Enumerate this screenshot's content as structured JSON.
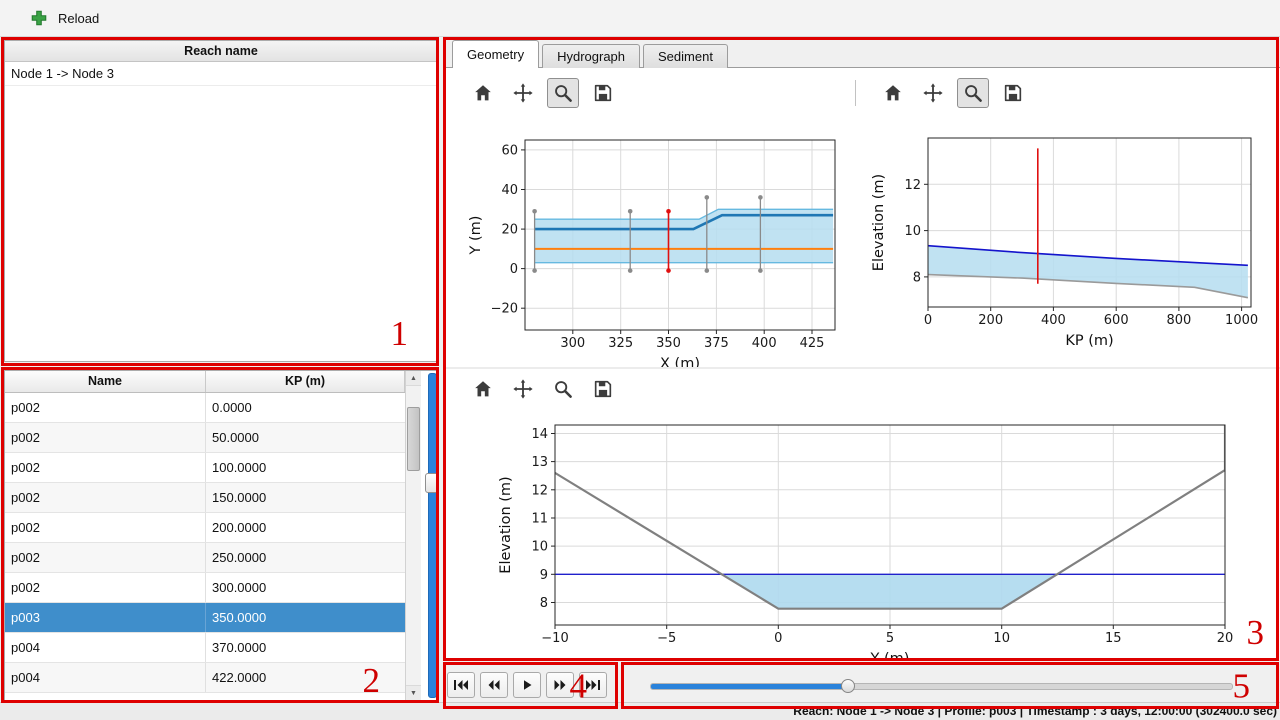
{
  "topbar": {
    "reload_label": "Reload"
  },
  "reach_panel": {
    "header": "Reach name",
    "items": [
      "Node 1 -> Node 3"
    ]
  },
  "profile_table": {
    "columns": [
      "Name",
      "KP (m)"
    ],
    "rows": [
      {
        "name": "p002",
        "kp": "0.0000"
      },
      {
        "name": "p002",
        "kp": "50.0000"
      },
      {
        "name": "p002",
        "kp": "100.0000"
      },
      {
        "name": "p002",
        "kp": "150.0000"
      },
      {
        "name": "p002",
        "kp": "200.0000"
      },
      {
        "name": "p002",
        "kp": "250.0000"
      },
      {
        "name": "p002",
        "kp": "300.0000"
      },
      {
        "name": "p003",
        "kp": "350.0000"
      },
      {
        "name": "p004",
        "kp": "370.0000"
      },
      {
        "name": "p004",
        "kp": "422.0000"
      }
    ],
    "selected_index": 7
  },
  "tabs": [
    {
      "label": "Geometry",
      "active": true
    },
    {
      "label": "Hydrograph",
      "active": false
    },
    {
      "label": "Sediment",
      "active": false
    }
  ],
  "mpl_toolbars": [
    {
      "id": "plan",
      "tools": [
        "home",
        "pan",
        "zoom",
        "save"
      ],
      "active_tool": "zoom"
    },
    {
      "id": "long",
      "tools": [
        "home",
        "pan",
        "zoom",
        "save"
      ],
      "active_tool": "zoom"
    },
    {
      "id": "cross",
      "tools": [
        "home",
        "pan",
        "zoom",
        "save"
      ],
      "active_tool": null
    }
  ],
  "icons": {
    "reload": "green-plus-cross",
    "home": "house",
    "pan": "four-arrows",
    "zoom": "magnifier",
    "save": "floppy-disk",
    "scroll_up": "▲",
    "scroll_down": "▼"
  },
  "playback": {
    "buttons": [
      "skip-to-start",
      "rewind",
      "play",
      "fast-forward",
      "skip-to-end"
    ]
  },
  "time_slider": {
    "fraction": 0.34
  },
  "statusbar": {
    "text": "Reach: Node 1 -> Node 3 | Profile: p003 | Timestamp : 3 days, 12:00:00 (302400.0 sec)"
  },
  "annotations": {
    "labels": [
      "1",
      "2",
      "3",
      "4",
      "5"
    ],
    "color": "#de0000"
  },
  "colors": {
    "selection_blue": "#3f8ecb",
    "slider_blue": "#2a82da",
    "annotation_red": "#de0000",
    "band_fill": "#b5ddf0",
    "centerline_blue": "#1f77b4",
    "orange_line": "#ff7f0e",
    "water_blue": "#1414cc",
    "bed_gray": "#9a9a9a",
    "marker_red": "#e01010"
  },
  "chart_data": [
    {
      "id": "plan_view",
      "type": "line",
      "xlabel": "X (m)",
      "ylabel": "Y (m)",
      "xlim": [
        275,
        437
      ],
      "ylim": [
        -31,
        65
      ],
      "xticks": [
        300,
        325,
        350,
        375,
        400,
        425
      ],
      "yticks": [
        -20,
        0,
        20,
        40,
        60
      ],
      "grid": true,
      "series": [
        {
          "name": "channel-band-fill",
          "type": "fill",
          "color": "#b5ddf0",
          "opacity": 0.85,
          "points": [
            [
              280,
              25
            ],
            [
              366,
              25
            ],
            [
              376,
              30
            ],
            [
              436,
              30
            ],
            [
              436,
              3
            ],
            [
              280,
              3
            ]
          ]
        },
        {
          "name": "band-top-edge",
          "type": "line",
          "color": "#66b9e0",
          "width": 1.4,
          "points": [
            [
              280,
              25
            ],
            [
              366,
              25
            ],
            [
              376,
              30
            ],
            [
              436,
              30
            ]
          ]
        },
        {
          "name": "band-bottom-edge",
          "type": "line",
          "color": "#66b9e0",
          "width": 1.4,
          "points": [
            [
              280,
              3
            ],
            [
              436,
              3
            ]
          ]
        },
        {
          "name": "centerline",
          "type": "line",
          "color": "#1f77b4",
          "width": 2.6,
          "points": [
            [
              280,
              20
            ],
            [
              363,
              20
            ],
            [
              378,
              27
            ],
            [
              436,
              27
            ]
          ]
        },
        {
          "name": "secondary-line",
          "type": "line",
          "color": "#ff7f0e",
          "width": 2,
          "points": [
            [
              280,
              10
            ],
            [
              436,
              10
            ]
          ]
        },
        {
          "name": "profile-marker",
          "type": "vline",
          "color": "#8a8a8a",
          "width": 1.3,
          "dots": true,
          "x": 280,
          "y1": -1,
          "y2": 29
        },
        {
          "name": "profile-marker",
          "type": "vline",
          "color": "#8a8a8a",
          "width": 1.3,
          "dots": true,
          "x": 330,
          "y1": -1,
          "y2": 29
        },
        {
          "name": "selected-profile-marker",
          "type": "vline",
          "color": "#e01010",
          "width": 1.6,
          "dots": true,
          "x": 350,
          "y1": -1,
          "y2": 29
        },
        {
          "name": "profile-marker",
          "type": "vline",
          "color": "#8a8a8a",
          "width": 1.3,
          "dots": true,
          "x": 370,
          "y1": -1,
          "y2": 36
        },
        {
          "name": "profile-marker",
          "type": "vline",
          "color": "#8a8a8a",
          "width": 1.3,
          "dots": true,
          "x": 398,
          "y1": -1,
          "y2": 36
        }
      ]
    },
    {
      "id": "long_profile",
      "type": "line",
      "xlabel": "KP (m)",
      "ylabel": "Elevation (m)",
      "xlim": [
        0,
        1030
      ],
      "ylim": [
        6.7,
        14.0
      ],
      "xticks": [
        0,
        200,
        400,
        600,
        800,
        1000
      ],
      "yticks": [
        8,
        10,
        12
      ],
      "grid": true,
      "series": [
        {
          "name": "water-fill",
          "type": "fill",
          "color": "#b5ddf0",
          "opacity": 0.85,
          "points": [
            [
              0,
              9.35
            ],
            [
              300,
              9.05
            ],
            [
              600,
              8.8
            ],
            [
              850,
              8.62
            ],
            [
              1020,
              8.5
            ],
            [
              1020,
              7.1
            ],
            [
              850,
              7.55
            ],
            [
              600,
              7.72
            ],
            [
              300,
              7.95
            ],
            [
              0,
              8.1
            ]
          ]
        },
        {
          "name": "water-level-line",
          "type": "line",
          "color": "#1414cc",
          "width": 1.6,
          "points": [
            [
              0,
              9.35
            ],
            [
              300,
              9.05
            ],
            [
              600,
              8.8
            ],
            [
              850,
              8.62
            ],
            [
              1020,
              8.5
            ]
          ]
        },
        {
          "name": "bed-level-line",
          "type": "line",
          "color": "#9a9a9a",
          "width": 1.6,
          "points": [
            [
              0,
              8.1
            ],
            [
              300,
              7.95
            ],
            [
              600,
              7.72
            ],
            [
              850,
              7.55
            ],
            [
              1020,
              7.1
            ]
          ]
        },
        {
          "name": "selected-profile-marker",
          "type": "vline",
          "color": "#e01010",
          "width": 1.6,
          "x": 350,
          "y1": 7.7,
          "y2": 13.55
        }
      ]
    },
    {
      "id": "cross_section",
      "type": "line",
      "xlabel": "Y (m)",
      "ylabel": "Elevation (m)",
      "xlim": [
        -10,
        20
      ],
      "ylim": [
        7.2,
        14.3
      ],
      "xticks": [
        -10,
        -5,
        0,
        5,
        10,
        15,
        20
      ],
      "yticks": [
        8,
        9,
        10,
        11,
        12,
        13,
        14
      ],
      "grid": true,
      "series": [
        {
          "name": "water-area-fill",
          "type": "fill",
          "color": "#aed9ee",
          "opacity": 0.9,
          "points": [
            [
              -2.55,
              9
            ],
            [
              0,
              7.78
            ],
            [
              10,
              7.78
            ],
            [
              12.47,
              9
            ]
          ]
        },
        {
          "name": "water-level-line",
          "type": "line",
          "color": "#2020cc",
          "width": 1.4,
          "points": [
            [
              -10,
              9
            ],
            [
              20,
              9
            ]
          ]
        },
        {
          "name": "bed-profile-line",
          "type": "line",
          "color": "#808080",
          "width": 2.2,
          "points": [
            [
              -10,
              12.6
            ],
            [
              0,
              7.78
            ],
            [
              10,
              7.78
            ],
            [
              20,
              12.7
            ],
            [
              20,
              14.35
            ]
          ]
        }
      ]
    }
  ]
}
